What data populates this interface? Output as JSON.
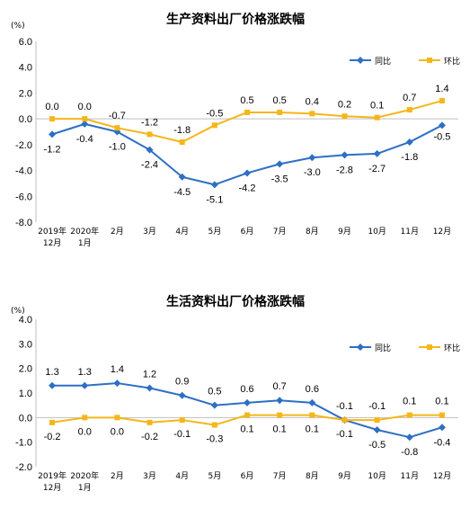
{
  "chart_data": [
    {
      "type": "line",
      "title": "生产资料出厂价格涨跌幅",
      "unit": "(%)",
      "categories": [
        [
          "2019年",
          "12月"
        ],
        [
          "2020年",
          "1月"
        ],
        [
          "2月"
        ],
        [
          "3月"
        ],
        [
          "4月"
        ],
        [
          "5月"
        ],
        [
          "6月"
        ],
        [
          "7月"
        ],
        [
          "8月"
        ],
        [
          "9月"
        ],
        [
          "10月"
        ],
        [
          "11月"
        ],
        [
          "12月"
        ]
      ],
      "ylim": [
        -8.0,
        6.0
      ],
      "yticks": [
        "6.0",
        "4.0",
        "2.0",
        "0.0",
        "-2.0",
        "-4.0",
        "-6.0",
        "-8.0"
      ],
      "legend_position": "top-right",
      "series": [
        {
          "name": "同比",
          "color": "#2e6fc4",
          "marker": "diamond",
          "values": [
            -1.2,
            -0.4,
            -1.0,
            -2.4,
            -4.5,
            -5.1,
            -4.2,
            -3.5,
            -3.0,
            -2.8,
            -2.7,
            -1.8,
            -0.5
          ],
          "labels": [
            "-1.2",
            "-0.4",
            "-1.0",
            "-2.4",
            "-4.5",
            "-5.1",
            "-4.2",
            "-3.5",
            "-3.0",
            "-2.8",
            "-2.7",
            "-1.8",
            "-0.5"
          ]
        },
        {
          "name": "环比",
          "color": "#f5b619",
          "marker": "square",
          "values": [
            0.0,
            0.0,
            -0.7,
            -1.2,
            -1.8,
            -0.5,
            0.5,
            0.5,
            0.4,
            0.2,
            0.1,
            0.7,
            1.4
          ],
          "labels": [
            "0.0",
            "0.0",
            "-0.7",
            "-1.2",
            "-1.8",
            "-0.5",
            "0.5",
            "0.5",
            "0.4",
            "0.2",
            "0.1",
            "0.7",
            "1.4"
          ]
        }
      ]
    },
    {
      "type": "line",
      "title": "生活资料出厂价格涨跌幅",
      "unit": "(%)",
      "categories": [
        [
          "2019年",
          "12月"
        ],
        [
          "2020年",
          "1月"
        ],
        [
          "2月"
        ],
        [
          "3月"
        ],
        [
          "4月"
        ],
        [
          "5月"
        ],
        [
          "6月"
        ],
        [
          "7月"
        ],
        [
          "8月"
        ],
        [
          "9月"
        ],
        [
          "10月"
        ],
        [
          "11月"
        ],
        [
          "12月"
        ]
      ],
      "ylim": [
        -2.0,
        4.0
      ],
      "yticks": [
        "4.0",
        "3.0",
        "2.0",
        "1.0",
        "0.0",
        "-1.0",
        "-2.0"
      ],
      "legend_position": "top-right",
      "series": [
        {
          "name": "同比",
          "color": "#2e6fc4",
          "marker": "diamond",
          "values": [
            1.3,
            1.3,
            1.4,
            1.2,
            0.9,
            0.5,
            0.6,
            0.7,
            0.6,
            -0.1,
            -0.5,
            -0.8,
            -0.4
          ],
          "labels": [
            "1.3",
            "1.3",
            "1.4",
            "1.2",
            "0.9",
            "0.5",
            "0.6",
            "0.7",
            "0.6",
            "-0.1",
            "-0.5",
            "-0.8",
            "-0.4"
          ]
        },
        {
          "name": "环比",
          "color": "#f5b619",
          "marker": "square",
          "values": [
            -0.2,
            0.0,
            0.0,
            -0.2,
            -0.1,
            -0.3,
            0.1,
            0.1,
            0.1,
            -0.1,
            -0.1,
            0.1,
            0.1
          ],
          "labels": [
            "-0.2",
            "0.0",
            "0.0",
            "-0.2",
            "-0.1",
            "-0.3",
            "0.1",
            "0.1",
            "0.1",
            "-0.1",
            "-0.1",
            "0.1",
            "0.1"
          ]
        }
      ]
    }
  ]
}
